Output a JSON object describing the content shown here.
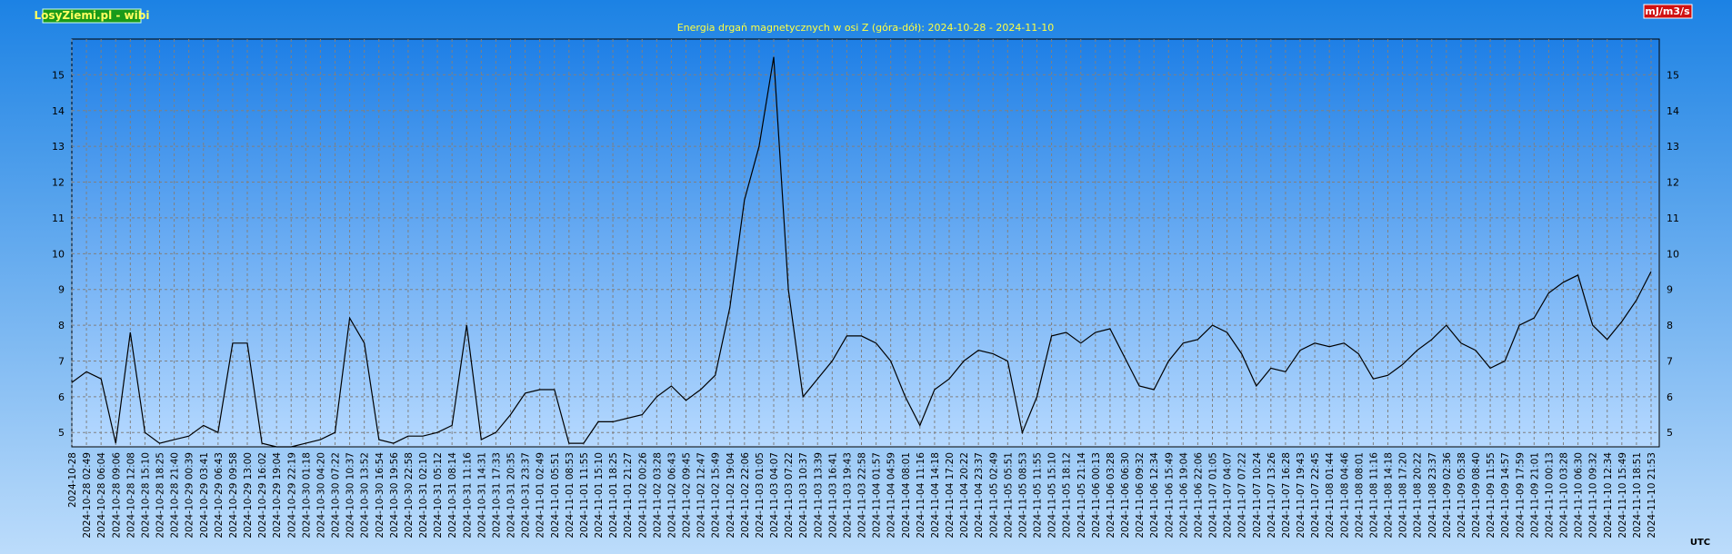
{
  "chart_data": {
    "type": "line",
    "brand": "LosyZiemi.pl - wibi",
    "title": "Energia drgań magnetycznych w osi Z (góra-dół): 2024-10-28 - 2024-11-10",
    "unit_label": "mJ/m3/s",
    "timezone_label": "UTC",
    "categories": [
      "2024-10-28",
      "2024-10-28 02:49",
      "2024-10-28 06:04",
      "2024-10-28 09:06",
      "2024-10-28 12:08",
      "2024-10-28 15:10",
      "2024-10-28 18:25",
      "2024-10-28 21:40",
      "2024-10-29 00:39",
      "2024-10-29 03:41",
      "2024-10-29 06:43",
      "2024-10-29 09:58",
      "2024-10-29 13:00",
      "2024-10-29 16:02",
      "2024-10-29 19:04",
      "2024-10-29 22:19",
      "2024-10-30 01:18",
      "2024-10-30 04:20",
      "2024-10-30 07:22",
      "2024-10-30 10:37",
      "2024-10-30 13:52",
      "2024-10-30 16:54",
      "2024-10-30 19:56",
      "2024-10-30 22:58",
      "2024-10-31 02:10",
      "2024-10-31 05:12",
      "2024-10-31 08:14",
      "2024-10-31 11:16",
      "2024-10-31 14:31",
      "2024-10-31 17:33",
      "2024-10-31 20:35",
      "2024-10-31 23:37",
      "2024-11-01 02:49",
      "2024-11-01 05:51",
      "2024-11-01 08:53",
      "2024-11-01 11:55",
      "2024-11-01 15:10",
      "2024-11-01 18:25",
      "2024-11-01 21:27",
      "2024-11-02 00:26",
      "2024-11-02 03:28",
      "2024-11-02 06:43",
      "2024-11-02 09:45",
      "2024-11-02 12:47",
      "2024-11-02 15:49",
      "2024-11-02 19:04",
      "2024-11-02 22:06",
      "2024-11-03 01:05",
      "2024-11-03 04:07",
      "2024-11-03 07:22",
      "2024-11-03 10:37",
      "2024-11-03 13:39",
      "2024-11-03 16:41",
      "2024-11-03 19:43",
      "2024-11-03 22:58",
      "2024-11-04 01:57",
      "2024-11-04 04:59",
      "2024-11-04 08:01",
      "2024-11-04 11:16",
      "2024-11-04 14:18",
      "2024-11-04 17:20",
      "2024-11-04 20:22",
      "2024-11-04 23:37",
      "2024-11-05 02:49",
      "2024-11-05 05:51",
      "2024-11-05 08:53",
      "2024-11-05 11:55",
      "2024-11-05 15:10",
      "2024-11-05 18:12",
      "2024-11-05 21:14",
      "2024-11-06 00:13",
      "2024-11-06 03:28",
      "2024-11-06 06:30",
      "2024-11-06 09:32",
      "2024-11-06 12:34",
      "2024-11-06 15:49",
      "2024-11-06 19:04",
      "2024-11-06 22:06",
      "2024-11-07 01:05",
      "2024-11-07 04:07",
      "2024-11-07 07:22",
      "2024-11-07 10:24",
      "2024-11-07 13:26",
      "2024-11-07 16:28",
      "2024-11-07 19:43",
      "2024-11-07 22:45",
      "2024-11-08 01:44",
      "2024-11-08 04:46",
      "2024-11-08 08:01",
      "2024-11-08 11:16",
      "2024-11-08 14:18",
      "2024-11-08 17:20",
      "2024-11-08 20:22",
      "2024-11-08 23:37",
      "2024-11-09 02:36",
      "2024-11-09 05:38",
      "2024-11-09 08:40",
      "2024-11-09 11:55",
      "2024-11-09 14:57",
      "2024-11-09 17:59",
      "2024-11-09 21:01",
      "2024-11-10 00:13",
      "2024-11-10 03:28",
      "2024-11-10 06:30",
      "2024-11-10 09:32",
      "2024-11-10 12:34",
      "2024-11-10 15:49",
      "2024-11-10 18:51",
      "2024-11-10 21:53"
    ],
    "series": [
      {
        "color": "#000000",
        "values": [
          6.4,
          6.7,
          6.5,
          4.7,
          7.8,
          5.0,
          4.7,
          4.8,
          4.9,
          5.2,
          5.0,
          7.5,
          7.5,
          4.7,
          4.6,
          4.6,
          4.7,
          4.8,
          5.0,
          8.2,
          7.5,
          4.8,
          4.7,
          4.9,
          4.9,
          5.0,
          5.2,
          8.0,
          4.8,
          5.0,
          5.5,
          6.1,
          6.2,
          6.2,
          4.7,
          4.7,
          5.3,
          5.3,
          5.4,
          5.5,
          6.0,
          6.3,
          5.9,
          6.2,
          6.6,
          8.5,
          11.5,
          13.0,
          15.5,
          9.0,
          6.0,
          6.5,
          7.0,
          7.7,
          7.7,
          7.5,
          7.0,
          6.0,
          5.2,
          6.2,
          6.5,
          7.0,
          7.3,
          7.2,
          7.0,
          5.0,
          6.0,
          7.7,
          7.8,
          7.5,
          7.8,
          7.9,
          7.1,
          6.3,
          6.2,
          7.0,
          7.5,
          7.6,
          8.0,
          7.8,
          7.2,
          6.3,
          6.8,
          6.7,
          7.3,
          7.5,
          7.4,
          7.5,
          7.2,
          6.5,
          6.6,
          6.9,
          7.3,
          7.6,
          8.0,
          7.5,
          7.3,
          6.8,
          7.0,
          8.0,
          8.2,
          8.9,
          9.2,
          9.4,
          8.0,
          7.6,
          8.1,
          8.7,
          9.5
        ]
      }
    ],
    "ylim": [
      4.6,
      16
    ],
    "yticks": [
      5,
      6,
      7,
      8,
      9,
      10,
      11,
      12,
      13,
      14,
      15
    ],
    "grid": true
  }
}
